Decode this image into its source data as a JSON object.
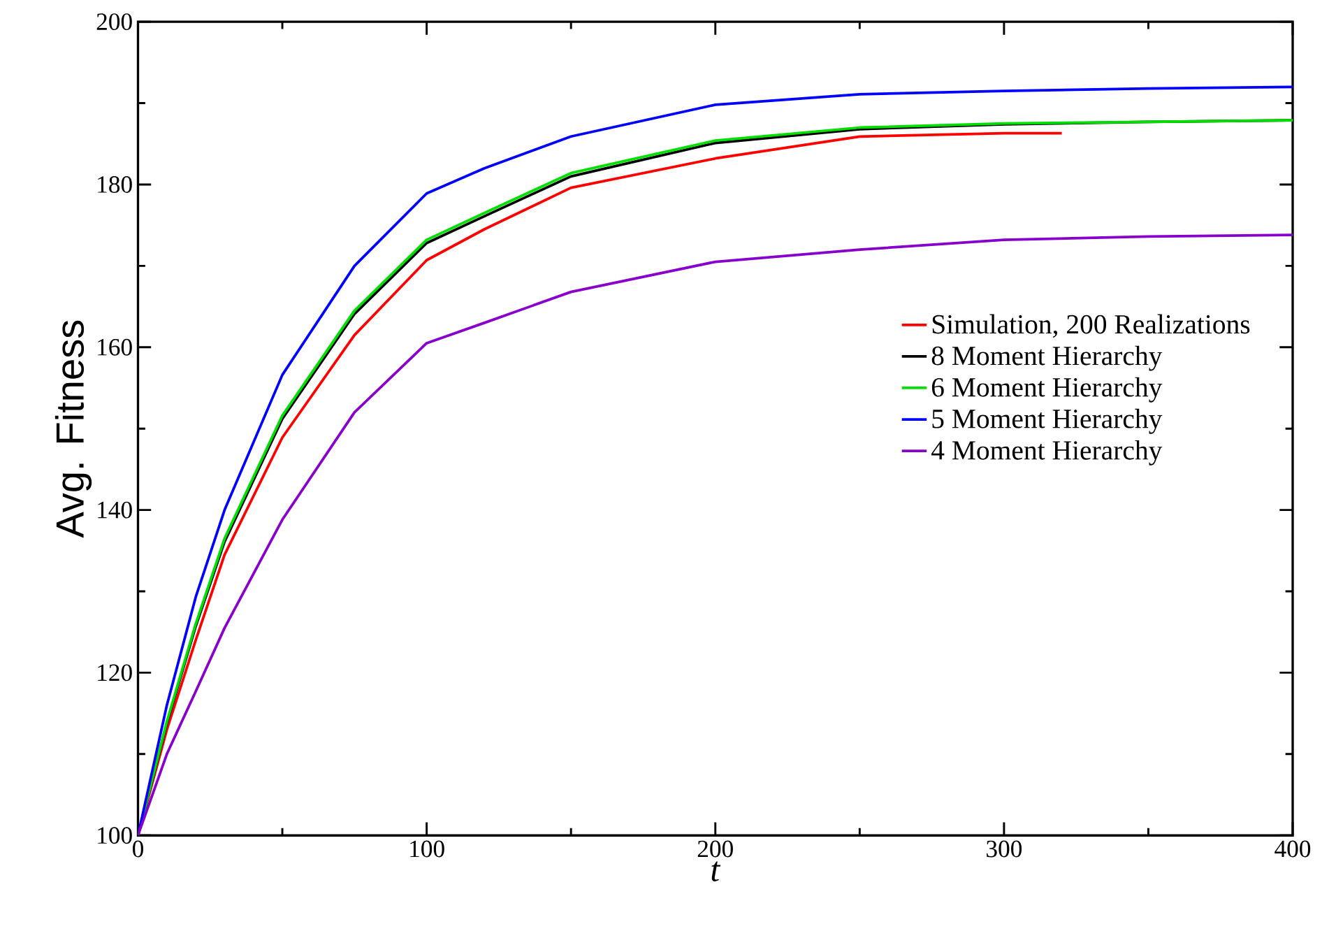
{
  "chart_data": {
    "type": "line",
    "xlabel": "*t*",
    "ylabel": "Avg. Fitness",
    "xlim": [
      0,
      400
    ],
    "ylim": [
      100,
      200
    ],
    "xticks": [
      0,
      100,
      200,
      300,
      400
    ],
    "yticks": [
      100,
      120,
      140,
      160,
      180,
      200
    ],
    "legend": "right",
    "grid": false,
    "marker": "none",
    "line_style": "solid",
    "series": [
      {
        "name": "Simulation, 200 Realizations",
        "color": "#ff0000",
        "x": [
          0,
          10,
          20,
          30,
          50,
          75,
          100,
          120,
          150,
          200,
          250,
          300,
          320
        ],
        "values": [
          100,
          113,
          124,
          134.5,
          148.9,
          161.5,
          170.7,
          174.5,
          179.6,
          183.2,
          185.9,
          186.3,
          186.3
        ]
      },
      {
        "name": "8 Moment Hierarchy",
        "color": "#000000",
        "x": [
          0,
          10,
          20,
          30,
          50,
          75,
          100,
          120,
          150,
          200,
          250,
          300,
          350,
          400
        ],
        "values": [
          100,
          113.8,
          125.7,
          136.1,
          151.2,
          164.1,
          172.8,
          176.1,
          181.0,
          185.1,
          186.8,
          187.4,
          187.7,
          187.9
        ]
      },
      {
        "name": "6 Moment Hierarchy",
        "color": "#00e000",
        "x": [
          0,
          10,
          20,
          30,
          50,
          75,
          100,
          120,
          150,
          200,
          250,
          300,
          350,
          400
        ],
        "values": [
          100,
          114,
          126,
          136.5,
          151.6,
          164.5,
          173.2,
          176.5,
          181.4,
          185.4,
          187.0,
          187.5,
          187.7,
          187.9
        ]
      },
      {
        "name": "5 Moment Hierarchy",
        "color": "#0000ff",
        "x": [
          0,
          10,
          20,
          30,
          50,
          75,
          100,
          120,
          150,
          200,
          250,
          300,
          350,
          400
        ],
        "values": [
          100,
          116,
          129.3,
          140,
          156.6,
          170,
          178.9,
          182,
          185.9,
          189.8,
          191.1,
          191.5,
          191.8,
          192
        ]
      },
      {
        "name": "4 Moment Hierarchy",
        "color": "#8800cc",
        "x": [
          0,
          10,
          20,
          30,
          50,
          75,
          100,
          120,
          150,
          200,
          250,
          300,
          350,
          400
        ],
        "values": [
          100,
          110,
          117.7,
          125.5,
          138.8,
          152,
          160.5,
          163,
          166.8,
          170.5,
          172,
          173.2,
          173.6,
          173.8
        ]
      }
    ]
  }
}
